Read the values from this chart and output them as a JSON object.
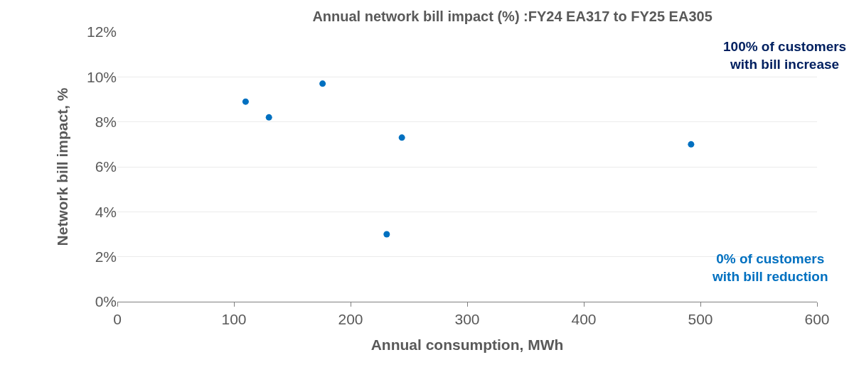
{
  "chart_data": {
    "type": "scatter",
    "title": "Annual network bill impact (%) :FY24 EA317 to FY25 EA305",
    "xlabel": "Annual consumption, MWh",
    "ylabel": "Network bill impact, %",
    "x": [
      110,
      130,
      176,
      231,
      244,
      492
    ],
    "values": [
      8.9,
      8.2,
      9.7,
      3.0,
      7.3,
      7.0
    ],
    "color": "#0070c0",
    "marker": "circle",
    "xlim": [
      0,
      600
    ],
    "xticks": [
      0,
      100,
      200,
      300,
      400,
      500,
      600
    ],
    "ylim": [
      0,
      12
    ],
    "yticks": [
      {
        "value": 0,
        "label": "0%"
      },
      {
        "value": 2,
        "label": "2%"
      },
      {
        "value": 4,
        "label": "4%"
      },
      {
        "value": 6,
        "label": "6%"
      },
      {
        "value": 8,
        "label": "8%"
      },
      {
        "value": 10,
        "label": "10%"
      },
      {
        "value": 12,
        "label": "12%"
      }
    ],
    "grid": "y",
    "annotations": [
      "100% of customers\nwith bill increase",
      "0% of customers\nwith bill reduction"
    ]
  }
}
